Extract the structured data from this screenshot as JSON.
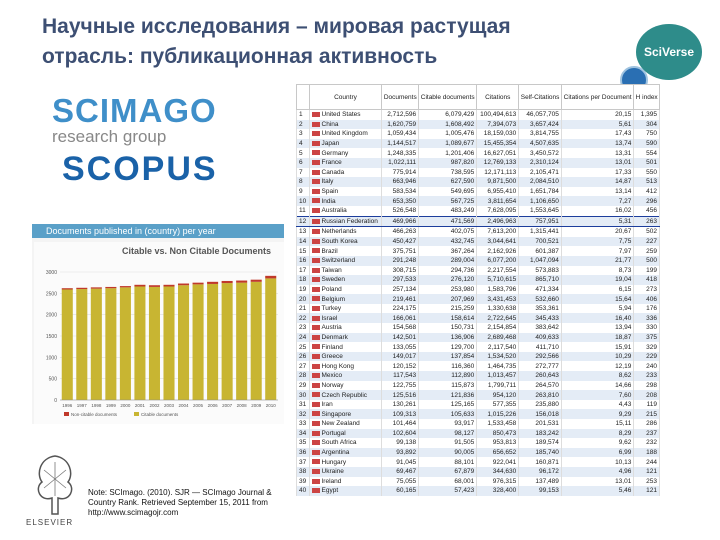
{
  "title": "Научные исследования – мировая растущая отрасль: публикационная активность",
  "badge": "SciVerse",
  "scimago": {
    "big": "SCIMAGO",
    "small": "research group"
  },
  "scopus": "SCOPUS",
  "chart_panel": {
    "header": "Documents published in (country) per year",
    "title": "Citable vs. Non Citable Documents",
    "yticks": [
      "0",
      "500",
      "1000",
      "1500",
      "2000",
      "2500",
      "3000"
    ],
    "years": [
      "1996",
      "1997",
      "1998",
      "1999",
      "2000",
      "2001",
      "2002",
      "2003",
      "2004",
      "2005",
      "2006",
      "2007",
      "2008",
      "2009",
      "2010"
    ],
    "legend": [
      "Non-citable documents",
      "Citable documents"
    ]
  },
  "chart_data": {
    "type": "bar",
    "title": "Citable vs. Non Citable Documents",
    "categories": [
      "1996",
      "1997",
      "1998",
      "1999",
      "2000",
      "2001",
      "2002",
      "2003",
      "2004",
      "2005",
      "2006",
      "2007",
      "2008",
      "2009",
      "2010"
    ],
    "series": [
      {
        "name": "Citable documents",
        "values": [
          2590,
          2600,
          2610,
          2620,
          2640,
          2660,
          2650,
          2660,
          2690,
          2710,
          2720,
          2740,
          2750,
          2770,
          2850
        ]
      },
      {
        "name": "Non-citable documents",
        "values": [
          30,
          30,
          30,
          30,
          30,
          40,
          40,
          40,
          40,
          40,
          50,
          50,
          50,
          50,
          60
        ]
      }
    ],
    "ylim": [
      0,
      3000
    ],
    "colors": {
      "citable": "#c8b532",
      "noncitable": "#c0392b"
    }
  },
  "note": "Note: SCImago. (2010). SJR — SCImago Journal & Country Rank. Retrieved September 15, 2011 from http://www.scimagojr.com",
  "elsevier": "ELSEVIER",
  "table": {
    "headers": [
      "",
      "Country",
      "Documents",
      "Citable documents",
      "Citations",
      "Self-Citations",
      "Citations per Document",
      "H index"
    ],
    "highlight_row": 12,
    "rows": [
      [
        "1",
        "United States",
        "2,712,596",
        "6,079,429",
        "100,494,613",
        "46,057,705",
        "20,15",
        "1,395"
      ],
      [
        "2",
        "China",
        "1,620,759",
        "1,608,492",
        "7,394,073",
        "3,657,424",
        "5,61",
        "304"
      ],
      [
        "3",
        "United Kingdom",
        "1,059,434",
        "1,005,476",
        "18,159,030",
        "3,814,755",
        "17,43",
        "750"
      ],
      [
        "4",
        "Japan",
        "1,144,517",
        "1,089,677",
        "15,455,354",
        "4,507,635",
        "13,74",
        "590"
      ],
      [
        "5",
        "Germany",
        "1,248,335",
        "1,201,406",
        "16,627,051",
        "3,450,572",
        "13,31",
        "554"
      ],
      [
        "6",
        "France",
        "1,022,111",
        "987,820",
        "12,769,133",
        "2,310,124",
        "13,01",
        "501"
      ],
      [
        "7",
        "Canada",
        "775,914",
        "738,595",
        "12,171,113",
        "2,105,471",
        "17,33",
        "550"
      ],
      [
        "8",
        "Italy",
        "663,946",
        "627,590",
        "9,871,500",
        "2,084,510",
        "14,87",
        "513"
      ],
      [
        "9",
        "Spain",
        "583,534",
        "549,695",
        "6,955,410",
        "1,651,784",
        "13,14",
        "412"
      ],
      [
        "10",
        "India",
        "653,350",
        "567,725",
        "3,811,654",
        "1,106,650",
        "7,27",
        "296"
      ],
      [
        "11",
        "Australia",
        "526,548",
        "483,249",
        "7,628,095",
        "1,553,645",
        "16,02",
        "456"
      ],
      [
        "12",
        "Russian Federation",
        "469,966",
        "471,569",
        "2,496,963",
        "757,951",
        "5,31",
        "263"
      ],
      [
        "13",
        "Netherlands",
        "466,263",
        "402,075",
        "7,613,200",
        "1,315,441",
        "20,67",
        "502"
      ],
      [
        "14",
        "South Korea",
        "450,427",
        "432,745",
        "3,044,641",
        "700,521",
        "7,75",
        "227"
      ],
      [
        "15",
        "Brazil",
        "375,751",
        "367,264",
        "2,162,926",
        "601,387",
        "7,97",
        "259"
      ],
      [
        "16",
        "Switzerland",
        "291,248",
        "289,004",
        "6,077,200",
        "1,047,094",
        "21,77",
        "500"
      ],
      [
        "17",
        "Taiwan",
        "308,715",
        "294,736",
        "2,217,554",
        "573,883",
        "8,73",
        "199"
      ],
      [
        "18",
        "Sweden",
        "297,533",
        "276,120",
        "5,710,615",
        "865,710",
        "19,04",
        "418"
      ],
      [
        "19",
        "Poland",
        "257,134",
        "253,980",
        "1,583,796",
        "471,334",
        "6,15",
        "273"
      ],
      [
        "20",
        "Belgium",
        "219,461",
        "207,969",
        "3,431,453",
        "532,660",
        "15,64",
        "406"
      ],
      [
        "21",
        "Turkey",
        "224,175",
        "215,259",
        "1,330,638",
        "353,361",
        "5,94",
        "176"
      ],
      [
        "22",
        "Israel",
        "166,061",
        "158,614",
        "2,722,645",
        "345,433",
        "16,40",
        "336"
      ],
      [
        "23",
        "Austria",
        "154,568",
        "150,731",
        "2,154,854",
        "383,642",
        "13,94",
        "330"
      ],
      [
        "24",
        "Denmark",
        "142,501",
        "136,906",
        "2,689,468",
        "409,633",
        "18,87",
        "375"
      ],
      [
        "25",
        "Finland",
        "133,055",
        "129,700",
        "2,117,540",
        "411,710",
        "15,91",
        "329"
      ],
      [
        "26",
        "Greece",
        "149,017",
        "137,854",
        "1,534,520",
        "292,566",
        "10,29",
        "229"
      ],
      [
        "27",
        "Hong Kong",
        "120,152",
        "116,360",
        "1,464,735",
        "272,777",
        "12,19",
        "240"
      ],
      [
        "28",
        "Mexico",
        "117,543",
        "112,890",
        "1,013,457",
        "260,643",
        "8,62",
        "233"
      ],
      [
        "29",
        "Norway",
        "122,755",
        "115,873",
        "1,799,711",
        "264,570",
        "14,66",
        "298"
      ],
      [
        "30",
        "Czech Republic",
        "125,516",
        "121,836",
        "954,120",
        "263,810",
        "7,60",
        "208"
      ],
      [
        "31",
        "Iran",
        "130,261",
        "125,165",
        "577,355",
        "235,880",
        "4,43",
        "119"
      ],
      [
        "32",
        "Singapore",
        "109,313",
        "105,633",
        "1,015,226",
        "156,018",
        "9,29",
        "215"
      ],
      [
        "33",
        "New Zealand",
        "101,464",
        "93,917",
        "1,533,458",
        "201,531",
        "15,11",
        "286"
      ],
      [
        "34",
        "Portugal",
        "102,604",
        "98,127",
        "850,473",
        "183,242",
        "8,29",
        "237"
      ],
      [
        "35",
        "South Africa",
        "99,138",
        "91,505",
        "953,813",
        "189,574",
        "9,62",
        "232"
      ],
      [
        "36",
        "Argentina",
        "93,892",
        "90,005",
        "656,652",
        "185,740",
        "6,99",
        "188"
      ],
      [
        "37",
        "Hungary",
        "91,045",
        "88,101",
        "922,041",
        "160,871",
        "10,13",
        "244"
      ],
      [
        "38",
        "Ukraine",
        "69,467",
        "67,879",
        "344,630",
        "96,172",
        "4,96",
        "121"
      ],
      [
        "39",
        "Ireland",
        "75,055",
        "68,001",
        "976,315",
        "137,489",
        "13,01",
        "253"
      ],
      [
        "40",
        "Egypt",
        "60,165",
        "57,423",
        "328,400",
        "99,153",
        "5,46",
        "121"
      ]
    ]
  }
}
